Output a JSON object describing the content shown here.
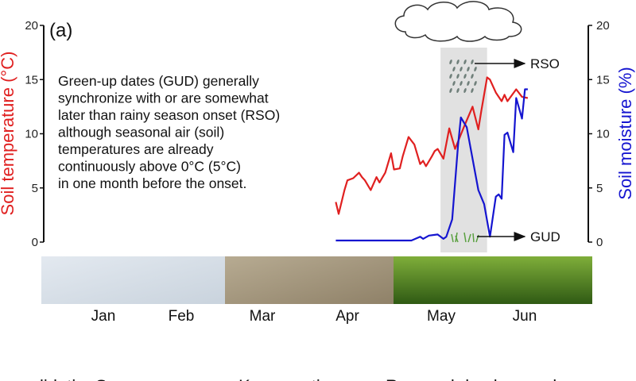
{
  "chart_data": {
    "type": "line",
    "panel_label": "(a)",
    "annotation_lines": [
      "Green-up dates (GUD) generally",
      "synchronize with or are somewhat",
      "later than rainy season onset (RSO)",
      "although seasonal air (soil)",
      "temperatures are already",
      "continuously above 0°C (5°C)",
      "in one month before the onset."
    ],
    "ylabel_left": "Soil temperature (°C)",
    "ylabel_right": "Soil moisture (%)",
    "ylim": [
      0,
      20
    ],
    "yticks": [
      "0",
      "5",
      "10",
      "15",
      "20"
    ],
    "xunit": "day of year",
    "months": [
      "Jan",
      "Feb",
      "Mar",
      "Apr",
      "May",
      "Jun"
    ],
    "rso_label": "RSO",
    "gud_label": "GUD",
    "rainy_window_doy": [
      137,
      153
    ],
    "colors": {
      "temperature": "#e02020",
      "moisture": "#1515d0",
      "left_axis_label": "#e02020",
      "right_axis_label": "#1515d0"
    },
    "series": [
      {
        "name": "Soil temperature",
        "axis": "left",
        "x": [
          101,
          102,
          104,
          105,
          107,
          109,
          110,
          111,
          113,
          115,
          116,
          118,
          120,
          121,
          123,
          124,
          126,
          128,
          130,
          131,
          132,
          134,
          135,
          136,
          138,
          140,
          142,
          145,
          148,
          150,
          151,
          153,
          154,
          156,
          158,
          159,
          160,
          163,
          165,
          167
        ],
        "y": [
          3.7,
          2.6,
          4.8,
          5.7,
          5.9,
          6.4,
          6.0,
          5.7,
          4.8,
          6.0,
          5.5,
          6.4,
          8.2,
          6.7,
          6.8,
          7.9,
          9.7,
          9.0,
          7.2,
          7.5,
          7.0,
          7.9,
          8.4,
          8.6,
          7.7,
          10.5,
          8.6,
          10.6,
          12.5,
          10.4,
          12.1,
          15.2,
          15.0,
          13.8,
          13.0,
          13.6,
          13.0,
          14.1,
          13.4,
          13.3
        ]
      },
      {
        "name": "Soil moisture",
        "axis": "right",
        "x": [
          101,
          127,
          130,
          131,
          133,
          136,
          138,
          139,
          141,
          143,
          144,
          146,
          148,
          150,
          152,
          154,
          156,
          157,
          158,
          159,
          160,
          162,
          163,
          165,
          166,
          167
        ],
        "y": [
          0.15,
          0.15,
          0.5,
          0.3,
          0.6,
          0.7,
          0.3,
          0.5,
          2.1,
          8.9,
          11.5,
          10.6,
          7.7,
          4.8,
          3.5,
          0.5,
          4.2,
          4.4,
          4.0,
          9.9,
          10.1,
          8.3,
          13.3,
          11.4,
          14.1,
          14.1
        ]
      }
    ]
  },
  "bottom_labels": [
    "lidation",
    "Summary",
    "Key questions",
    "Research background"
  ]
}
